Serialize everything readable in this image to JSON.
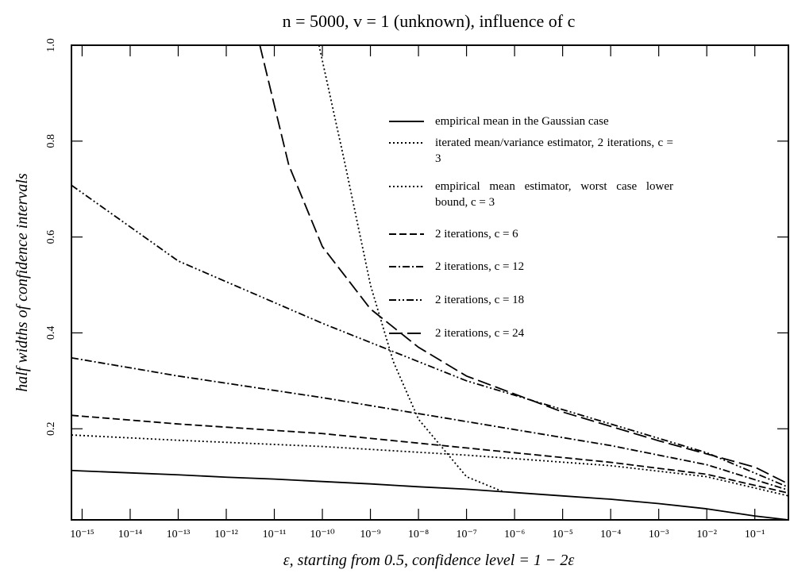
{
  "chart_data": {
    "type": "line",
    "title": "n = 5000, v = 1 (unknown), influence of c",
    "xlabel": "ε, starting from 0.5, confidence level = 1 − 2ε",
    "ylabel": "half widths of confidence intervals",
    "xscale": "log",
    "xlim": [
      6e-16,
      0.5
    ],
    "ylim": [
      0.01,
      1.0
    ],
    "xticks": [
      {
        "value": 1e-15,
        "label": "10⁻¹⁵"
      },
      {
        "value": 1e-14,
        "label": "10⁻¹⁴"
      },
      {
        "value": 1e-13,
        "label": "10⁻¹³"
      },
      {
        "value": 1e-12,
        "label": "10⁻¹²"
      },
      {
        "value": 1e-11,
        "label": "10⁻¹¹"
      },
      {
        "value": 1e-10,
        "label": "10⁻¹⁰"
      },
      {
        "value": 1e-09,
        "label": "10⁻⁹"
      },
      {
        "value": 1e-08,
        "label": "10⁻⁸"
      },
      {
        "value": 1e-07,
        "label": "10⁻⁷"
      },
      {
        "value": 1e-06,
        "label": "10⁻⁶"
      },
      {
        "value": 1e-05,
        "label": "10⁻⁵"
      },
      {
        "value": 0.0001,
        "label": "10⁻⁴"
      },
      {
        "value": 0.001,
        "label": "10⁻³"
      },
      {
        "value": 0.01,
        "label": "10⁻²"
      },
      {
        "value": 0.1,
        "label": "10⁻¹"
      }
    ],
    "yticks": [
      0.2,
      0.4,
      0.6,
      0.8,
      {
        "value": 1,
        "label": "1.0"
      }
    ],
    "legend": "upper right",
    "series": [
      {
        "name": "empirical mean in the Gaussian case",
        "color": "#000000",
        "dash": "solid",
        "x": [
          6e-16,
          1e-15,
          1e-14,
          1e-13,
          1e-12,
          1e-11,
          1e-10,
          1e-09,
          1e-08,
          1e-07,
          1e-06,
          1e-05,
          0.0001,
          0.001,
          0.01,
          0.1,
          0.5
        ],
        "values": [
          0.113,
          0.112,
          0.108,
          0.104,
          0.099,
          0.095,
          0.09,
          0.085,
          0.079,
          0.074,
          0.067,
          0.06,
          0.053,
          0.044,
          0.033,
          0.018,
          0.01
        ]
      },
      {
        "name": "iterated mean/variance estimator, 2 iterations, c = 3",
        "color": "#000000",
        "dash": "dotted",
        "x": [
          6e-16,
          1e-13,
          1e-10,
          1e-07,
          0.0001,
          0.01,
          0.5
        ],
        "values": [
          0.187,
          0.176,
          0.163,
          0.145,
          0.123,
          0.1,
          0.06
        ]
      },
      {
        "name": "empirical mean estimator, worst case lower bound, c = 3",
        "color": "#000000",
        "dash": "dotted",
        "x": [
          8.5e-11,
          3e-10,
          1e-09,
          3e-09,
          1e-08,
          1e-07,
          6e-07
        ],
        "values": [
          1.0,
          0.75,
          0.5,
          0.34,
          0.22,
          0.1,
          0.068
        ]
      },
      {
        "name": "2 iterations, c = 6",
        "color": "#000000",
        "dash": "dashed",
        "x": [
          6e-16,
          1e-13,
          1e-10,
          1e-07,
          0.0001,
          0.01,
          0.5
        ],
        "values": [
          0.228,
          0.21,
          0.19,
          0.16,
          0.13,
          0.105,
          0.066
        ]
      },
      {
        "name": "2 iterations, c = 12",
        "color": "#000000",
        "dash": "dashdot",
        "x": [
          6e-16,
          1e-13,
          1e-10,
          1e-07,
          0.0001,
          0.01,
          0.5
        ],
        "values": [
          0.348,
          0.31,
          0.265,
          0.215,
          0.165,
          0.125,
          0.072
        ]
      },
      {
        "name": "2 iterations, c = 18",
        "color": "#000000",
        "dash": "dashdotdot",
        "x": [
          6e-16,
          1e-13,
          1e-10,
          1e-07,
          0.0001,
          0.01,
          0.5
        ],
        "values": [
          0.708,
          0.55,
          0.42,
          0.3,
          0.21,
          0.15,
          0.078
        ]
      },
      {
        "name": "2 iterations, c = 24",
        "color": "#000000",
        "dash": "longdash",
        "x": [
          5e-12,
          2e-11,
          1e-10,
          1e-09,
          1e-08,
          1e-07,
          1e-05,
          0.001,
          0.1,
          0.5
        ],
        "values": [
          1.0,
          0.75,
          0.58,
          0.45,
          0.37,
          0.31,
          0.235,
          0.175,
          0.12,
          0.085
        ]
      }
    ]
  }
}
